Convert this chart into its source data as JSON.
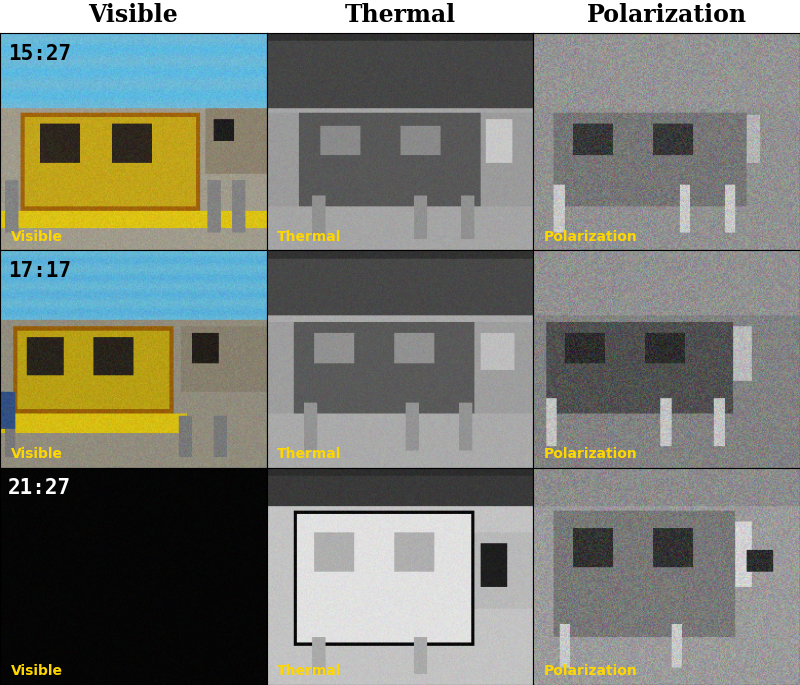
{
  "title_row": [
    "Visible",
    "Thermal",
    "Polarization"
  ],
  "time_labels": [
    "15:27",
    "17:17",
    "21:27"
  ],
  "col_label_texts": [
    "Visible",
    "Thermal",
    "Polarization"
  ],
  "col_label_color": "#FFD700",
  "time_label_color": "#000000",
  "time_label_color_night": "#FFFFFF",
  "background_color": "#FFFFFF",
  "border_color": "#000000",
  "header_fontsize": 17,
  "time_fontsize": 15,
  "col_label_fontsize": 10,
  "rows": 3,
  "cols": 3
}
